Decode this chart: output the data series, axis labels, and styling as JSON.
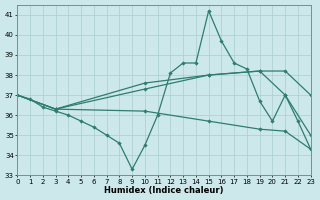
{
  "xlabel": "Humidex (Indice chaleur)",
  "xlim": [
    0,
    23
  ],
  "ylim": [
    33,
    41.5
  ],
  "yticks": [
    33,
    34,
    35,
    36,
    37,
    38,
    39,
    40,
    41
  ],
  "xticks": [
    0,
    1,
    2,
    3,
    4,
    5,
    6,
    7,
    8,
    9,
    10,
    11,
    12,
    13,
    14,
    15,
    16,
    17,
    18,
    19,
    20,
    21,
    22,
    23
  ],
  "background_color": "#cde8ea",
  "grid_color": "#a8cdd0",
  "line_color": "#2e7d6e",
  "line1": [
    [
      0,
      37.0
    ],
    [
      1,
      36.8
    ],
    [
      2,
      36.4
    ],
    [
      3,
      36.2
    ],
    [
      4,
      36.0
    ],
    [
      5,
      35.7
    ],
    [
      6,
      35.4
    ],
    [
      7,
      35.0
    ],
    [
      8,
      34.6
    ],
    [
      9,
      33.3
    ],
    [
      10,
      34.5
    ],
    [
      11,
      36.0
    ],
    [
      12,
      38.1
    ],
    [
      13,
      38.6
    ],
    [
      14,
      38.6
    ],
    [
      15,
      41.2
    ],
    [
      16,
      39.7
    ],
    [
      17,
      38.6
    ],
    [
      18,
      38.3
    ],
    [
      19,
      36.7
    ],
    [
      20,
      35.7
    ],
    [
      21,
      37.0
    ],
    [
      22,
      35.7
    ],
    [
      23,
      34.3
    ]
  ],
  "line2": [
    [
      0,
      37.0
    ],
    [
      3,
      36.3
    ],
    [
      10,
      37.3
    ],
    [
      15,
      38.0
    ],
    [
      19,
      38.2
    ],
    [
      21,
      37.0
    ],
    [
      23,
      35.0
    ]
  ],
  "line3": [
    [
      0,
      37.0
    ],
    [
      3,
      36.3
    ],
    [
      10,
      37.6
    ],
    [
      15,
      38.0
    ],
    [
      19,
      38.2
    ],
    [
      21,
      38.2
    ],
    [
      23,
      37.0
    ]
  ],
  "line4": [
    [
      0,
      37.0
    ],
    [
      3,
      36.3
    ],
    [
      10,
      36.2
    ],
    [
      15,
      35.7
    ],
    [
      19,
      35.3
    ],
    [
      21,
      35.2
    ],
    [
      23,
      34.3
    ]
  ]
}
